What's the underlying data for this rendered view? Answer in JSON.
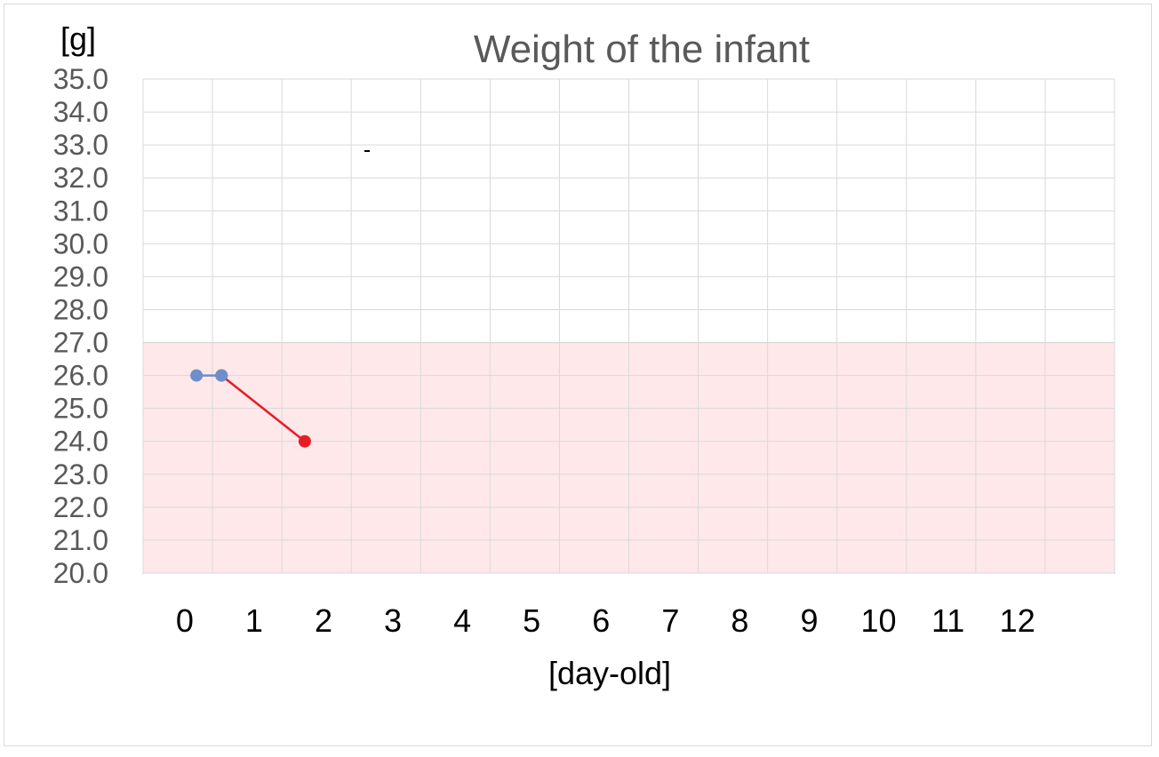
{
  "chart_data": {
    "type": "line",
    "title": "Weight of the infant",
    "ylabel": "[g]",
    "xlabel": "[day-old]",
    "ylim": [
      20.0,
      35.0
    ],
    "y_ticks": [
      "20.0",
      "21.0",
      "22.0",
      "23.0",
      "24.0",
      "25.0",
      "26.0",
      "27.0",
      "28.0",
      "29.0",
      "30.0",
      "31.0",
      "32.0",
      "33.0",
      "34.0",
      "35.0"
    ],
    "x_categories": [
      "0",
      "1",
      "2",
      "3",
      "4",
      "5",
      "6",
      "7",
      "8",
      "9",
      "10",
      "11",
      "12"
    ],
    "grid": true,
    "band": {
      "y_from": 20.0,
      "y_to": 27.0,
      "fill": "#ffe8ea",
      "stroke": "#c00000"
    },
    "series": [
      {
        "color": "#6d8fca",
        "points": [
          {
            "x": 0.27,
            "y": 26.0
          },
          {
            "x": 0.63,
            "y": 26.0
          }
        ]
      },
      {
        "color": "#e81c24",
        "points": [
          {
            "x": 0.63,
            "y": 26.0
          },
          {
            "x": 1.83,
            "y": 24.0
          }
        ]
      }
    ]
  }
}
